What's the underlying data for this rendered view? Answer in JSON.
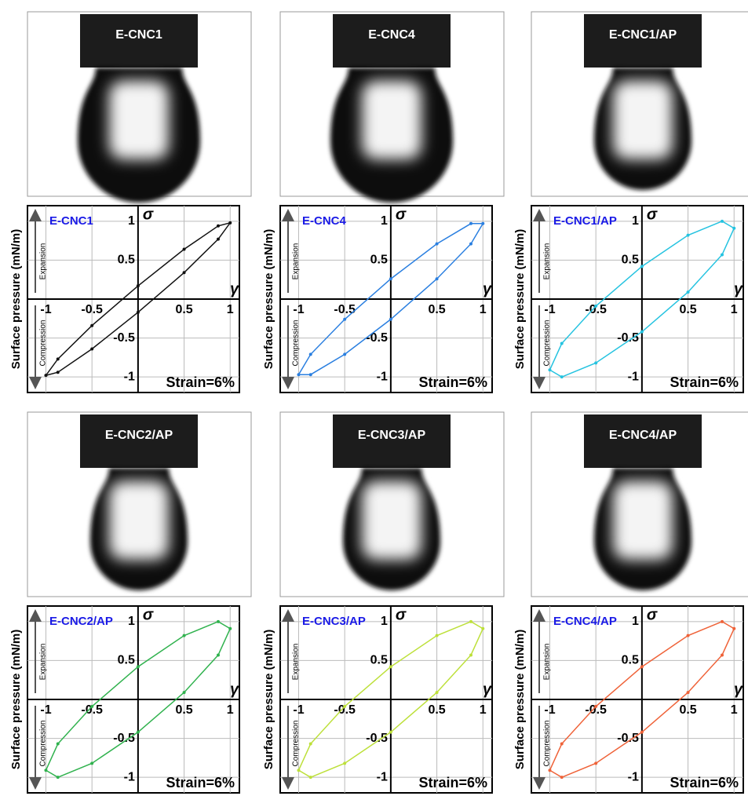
{
  "chart_data": [
    {
      "type": "line",
      "title": "E-CNC1",
      "x_label": "γ",
      "y_label": "σ",
      "y_axis_title": "Surface pressure (mN/m)",
      "expansion_label": "Expansion",
      "compression_label": "Compression",
      "annotation": "Strain=6%",
      "x": [
        1,
        0.87,
        0.5,
        0,
        -0.5,
        -0.87,
        -1,
        -0.87,
        -0.5,
        0,
        0.5,
        0.87
      ],
      "values": [
        0.98,
        0.94,
        0.64,
        0.17,
        -0.34,
        -0.77,
        -0.98,
        -0.94,
        -0.64,
        -0.17,
        0.34,
        0.77
      ],
      "color": "#111111",
      "xlim": [
        -1.2,
        1.1
      ],
      "ylim": [
        -1.2,
        1.2
      ],
      "xticks": [
        -1,
        -0.5,
        0.5,
        1
      ],
      "yticks": [
        -1,
        -0.5,
        0.5,
        1
      ],
      "grid": true
    },
    {
      "type": "line",
      "title": "E-CNC4",
      "x_label": "γ",
      "y_label": "σ",
      "y_axis_title": "Surface pressure (mN/m)",
      "expansion_label": "Expansion",
      "compression_label": "Compression",
      "annotation": "Strain=6%",
      "x": [
        1,
        0.87,
        0.5,
        0,
        -0.5,
        -0.87,
        -1,
        -0.87,
        -0.5,
        0,
        0.5,
        0.87
      ],
      "values": [
        0.97,
        0.97,
        0.71,
        0.26,
        -0.26,
        -0.71,
        -0.97,
        -0.97,
        -0.71,
        -0.26,
        0.26,
        0.71
      ],
      "color": "#2a7fe0",
      "xlim": [
        -1.2,
        1.1
      ],
      "ylim": [
        -1.2,
        1.2
      ],
      "xticks": [
        -1,
        -0.5,
        0.5,
        1
      ],
      "yticks": [
        -1,
        -0.5,
        0.5,
        1
      ],
      "grid": true
    },
    {
      "type": "line",
      "title": "E-CNC1/AP",
      "x_label": "γ",
      "y_label": "σ",
      "y_axis_title": "Surface pressure (mN/m)",
      "expansion_label": "Expansion",
      "compression_label": "Compression",
      "annotation": "Strain=6%",
      "x": [
        1,
        0.87,
        0.5,
        0,
        -0.5,
        -0.87,
        -1,
        -0.87,
        -0.5,
        0,
        0.5,
        0.87
      ],
      "values": [
        0.91,
        1.0,
        0.82,
        0.42,
        -0.09,
        -0.57,
        -0.91,
        -1.0,
        -0.82,
        -0.42,
        0.09,
        0.57
      ],
      "color": "#25c3e0",
      "xlim": [
        -1.2,
        1.1
      ],
      "ylim": [
        -1.2,
        1.2
      ],
      "xticks": [
        -1,
        -0.5,
        0.5,
        1
      ],
      "yticks": [
        -1,
        -0.5,
        0.5,
        1
      ],
      "grid": true
    },
    {
      "type": "line",
      "title": "E-CNC2/AP",
      "x_label": "γ",
      "y_label": "σ",
      "y_axis_title": "Surface pressure (mN/m)",
      "expansion_label": "Expansion",
      "compression_label": "Compression",
      "annotation": "Strain=6%",
      "x": [
        1,
        0.87,
        0.5,
        0,
        -0.5,
        -0.87,
        -1,
        -0.87,
        -0.5,
        0,
        0.5,
        0.87
      ],
      "values": [
        0.91,
        1.0,
        0.82,
        0.42,
        -0.09,
        -0.57,
        -0.91,
        -1.0,
        -0.82,
        -0.42,
        0.09,
        0.57
      ],
      "color": "#30b24e",
      "xlim": [
        -1.2,
        1.1
      ],
      "ylim": [
        -1.2,
        1.2
      ],
      "xticks": [
        -1,
        -0.5,
        0.5,
        1
      ],
      "yticks": [
        -1,
        -0.5,
        0.5,
        1
      ],
      "grid": true
    },
    {
      "type": "line",
      "title": "E-CNC3/AP",
      "x_label": "γ",
      "y_label": "σ",
      "y_axis_title": "Surface pressure (mN/m)",
      "expansion_label": "Expansion",
      "compression_label": "Compression",
      "annotation": "Strain=6%",
      "x": [
        1,
        0.87,
        0.5,
        0,
        -0.5,
        -0.87,
        -1,
        -0.87,
        -0.5,
        0,
        0.5,
        0.87
      ],
      "values": [
        0.91,
        1.0,
        0.82,
        0.42,
        -0.09,
        -0.57,
        -0.91,
        -1.0,
        -0.82,
        -0.42,
        0.09,
        0.57
      ],
      "color": "#bde03a",
      "xlim": [
        -1.2,
        1.1
      ],
      "ylim": [
        -1.2,
        1.2
      ],
      "xticks": [
        -1,
        -0.5,
        0.5,
        1
      ],
      "yticks": [
        -1,
        -0.5,
        0.5,
        1
      ],
      "grid": true
    },
    {
      "type": "line",
      "title": "E-CNC4/AP",
      "x_label": "γ",
      "y_label": "σ",
      "y_axis_title": "Surface pressure (mN/m)",
      "expansion_label": "Expansion",
      "compression_label": "Compression",
      "annotation": "Strain=6%",
      "x": [
        1,
        0.87,
        0.5,
        0,
        -0.5,
        -0.87,
        -1,
        -0.87,
        -0.5,
        0,
        0.5,
        0.87
      ],
      "values": [
        0.91,
        1.0,
        0.82,
        0.42,
        -0.09,
        -0.57,
        -0.91,
        -1.0,
        -0.82,
        -0.42,
        0.09,
        0.57
      ],
      "color": "#ef6238",
      "xlim": [
        -1.2,
        1.1
      ],
      "ylim": [
        -1.2,
        1.2
      ],
      "xticks": [
        -1,
        -0.5,
        0.5,
        1
      ],
      "yticks": [
        -1,
        -0.5,
        0.5,
        1
      ],
      "grid": true
    }
  ]
}
